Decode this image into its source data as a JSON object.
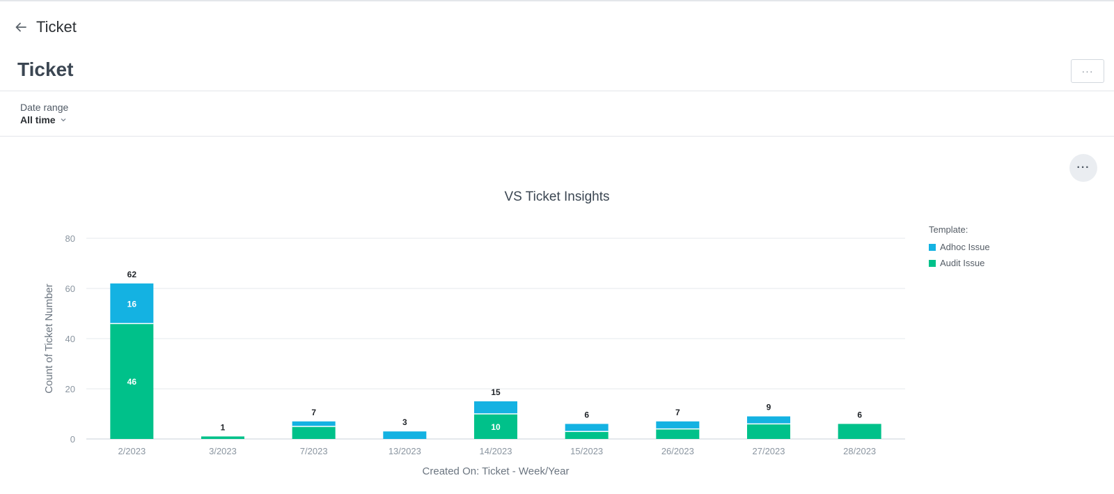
{
  "nav": {
    "title": "Ticket"
  },
  "page": {
    "title": "Ticket",
    "menu_label": "···"
  },
  "filter": {
    "label": "Date range",
    "value": "All time"
  },
  "widget": {
    "menu_label": "···"
  },
  "colors": {
    "adhoc": "#14b2e2",
    "audit": "#00c18a"
  },
  "chart_data": {
    "type": "bar",
    "stacked": true,
    "title": "VS Ticket Insights",
    "xlabel": "Created On: Ticket - Week/Year",
    "ylabel": "Count of Ticket Number",
    "ylim": [
      0,
      80
    ],
    "yticks": [
      0,
      20,
      40,
      60,
      80
    ],
    "grid": true,
    "legend_position": "top-right",
    "legend_title": "Template:",
    "categories": [
      "2/2023",
      "3/2023",
      "7/2023",
      "13/2023",
      "14/2023",
      "15/2023",
      "26/2023",
      "27/2023",
      "28/2023"
    ],
    "series": [
      {
        "name": "Audit Issue",
        "values": [
          46,
          1,
          5,
          0,
          10,
          3,
          4,
          6,
          6
        ]
      },
      {
        "name": "Adhoc Issue",
        "values": [
          16,
          0,
          2,
          3,
          5,
          3,
          3,
          3,
          0
        ]
      }
    ],
    "totals": [
      62,
      1,
      7,
      3,
      15,
      6,
      7,
      9,
      6
    ],
    "inner_labels": {
      "Audit Issue": [
        46,
        null,
        null,
        null,
        10,
        null,
        null,
        null,
        null
      ],
      "Adhoc Issue": [
        16,
        null,
        null,
        null,
        null,
        null,
        null,
        null,
        null
      ]
    },
    "legend_order": [
      "Adhoc Issue",
      "Audit Issue"
    ]
  }
}
